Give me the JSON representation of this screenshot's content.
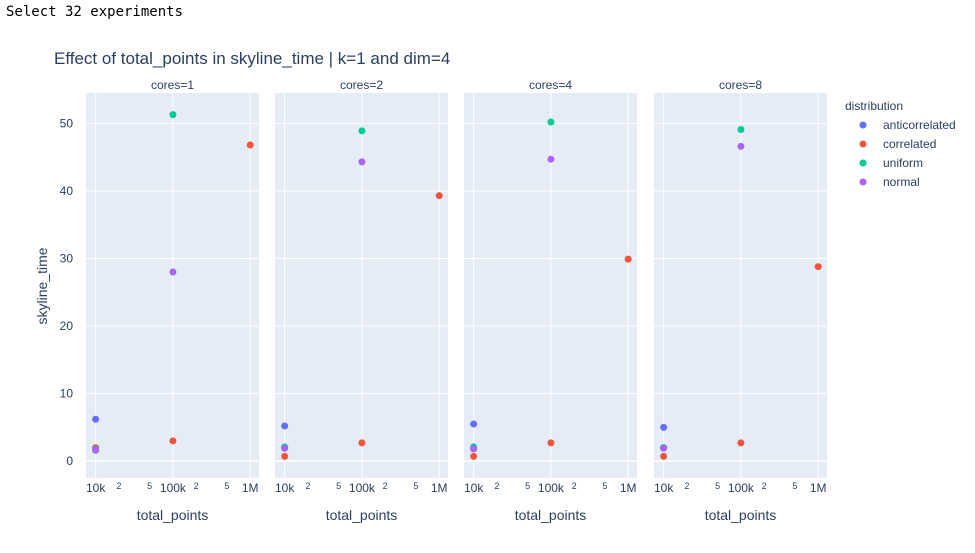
{
  "header": {
    "text": "Select 32 experiments"
  },
  "chart_data": {
    "type": "scatter",
    "title": "Effect of total_points in skyline_time | k=1 and dim=4",
    "xlabel": "total_points",
    "ylabel": "skyline_time",
    "x_scale": "log",
    "x_range": [
      7500,
      1300000
    ],
    "ylim": [
      -2.5,
      54.5
    ],
    "y_ticks": [
      0,
      10,
      20,
      30,
      40,
      50
    ],
    "x_ticks": [
      {
        "value": 10000,
        "label": "10k"
      },
      {
        "value": 20000,
        "label": "2"
      },
      {
        "value": 50000,
        "label": "5"
      },
      {
        "value": 100000,
        "label": "100k"
      },
      {
        "value": 200000,
        "label": "2"
      },
      {
        "value": 500000,
        "label": "5"
      },
      {
        "value": 1000000,
        "label": "1M"
      }
    ],
    "grid": true,
    "legend": {
      "title": "distribution",
      "placement": "right",
      "entries": [
        "anticorrelated",
        "correlated",
        "uniform",
        "normal"
      ]
    },
    "colors": {
      "anticorrelated": "#636efa",
      "correlated": "#ef553b",
      "uniform": "#00cc96",
      "normal": "#ab63fa",
      "panel_bg": "#e5ecf6",
      "text": "#2a3f5f"
    },
    "panels": [
      {
        "label": "cores=1",
        "points": [
          {
            "series": "anticorrelated",
            "x": 10000,
            "y": 6.2
          },
          {
            "series": "anticorrelated",
            "x": 10000,
            "y": 1.6
          },
          {
            "series": "correlated",
            "x": 10000,
            "y": 2.0
          },
          {
            "series": "uniform",
            "x": 10000,
            "y": 1.8
          },
          {
            "series": "normal",
            "x": 10000,
            "y": 1.7
          },
          {
            "series": "correlated",
            "x": 100000,
            "y": 3.0
          },
          {
            "series": "uniform",
            "x": 100000,
            "y": 51.3
          },
          {
            "series": "normal",
            "x": 100000,
            "y": 28.0
          },
          {
            "series": "correlated",
            "x": 1000000,
            "y": 46.8
          }
        ]
      },
      {
        "label": "cores=2",
        "points": [
          {
            "series": "anticorrelated",
            "x": 10000,
            "y": 5.2
          },
          {
            "series": "anticorrelated",
            "x": 10000,
            "y": 2.0
          },
          {
            "series": "uniform",
            "x": 10000,
            "y": 2.1
          },
          {
            "series": "normal",
            "x": 10000,
            "y": 1.9
          },
          {
            "series": "correlated",
            "x": 10000,
            "y": 0.7
          },
          {
            "series": "correlated",
            "x": 100000,
            "y": 2.7
          },
          {
            "series": "uniform",
            "x": 100000,
            "y": 48.9
          },
          {
            "series": "normal",
            "x": 100000,
            "y": 44.3
          },
          {
            "series": "correlated",
            "x": 1000000,
            "y": 39.3
          }
        ]
      },
      {
        "label": "cores=4",
        "points": [
          {
            "series": "anticorrelated",
            "x": 10000,
            "y": 5.5
          },
          {
            "series": "anticorrelated",
            "x": 10000,
            "y": 1.9
          },
          {
            "series": "uniform",
            "x": 10000,
            "y": 2.1
          },
          {
            "series": "normal",
            "x": 10000,
            "y": 1.8
          },
          {
            "series": "correlated",
            "x": 10000,
            "y": 0.7
          },
          {
            "series": "correlated",
            "x": 100000,
            "y": 2.7
          },
          {
            "series": "uniform",
            "x": 100000,
            "y": 50.2
          },
          {
            "series": "normal",
            "x": 100000,
            "y": 44.7
          },
          {
            "series": "correlated",
            "x": 1000000,
            "y": 29.9
          }
        ]
      },
      {
        "label": "cores=8",
        "points": [
          {
            "series": "anticorrelated",
            "x": 10000,
            "y": 5.0
          },
          {
            "series": "anticorrelated",
            "x": 10000,
            "y": 2.0
          },
          {
            "series": "uniform",
            "x": 10000,
            "y": 2.0
          },
          {
            "series": "normal",
            "x": 10000,
            "y": 1.9
          },
          {
            "series": "correlated",
            "x": 10000,
            "y": 0.7
          },
          {
            "series": "correlated",
            "x": 100000,
            "y": 2.7
          },
          {
            "series": "uniform",
            "x": 100000,
            "y": 49.1
          },
          {
            "series": "normal",
            "x": 100000,
            "y": 46.6
          },
          {
            "series": "correlated",
            "x": 1000000,
            "y": 28.8
          }
        ]
      }
    ]
  }
}
